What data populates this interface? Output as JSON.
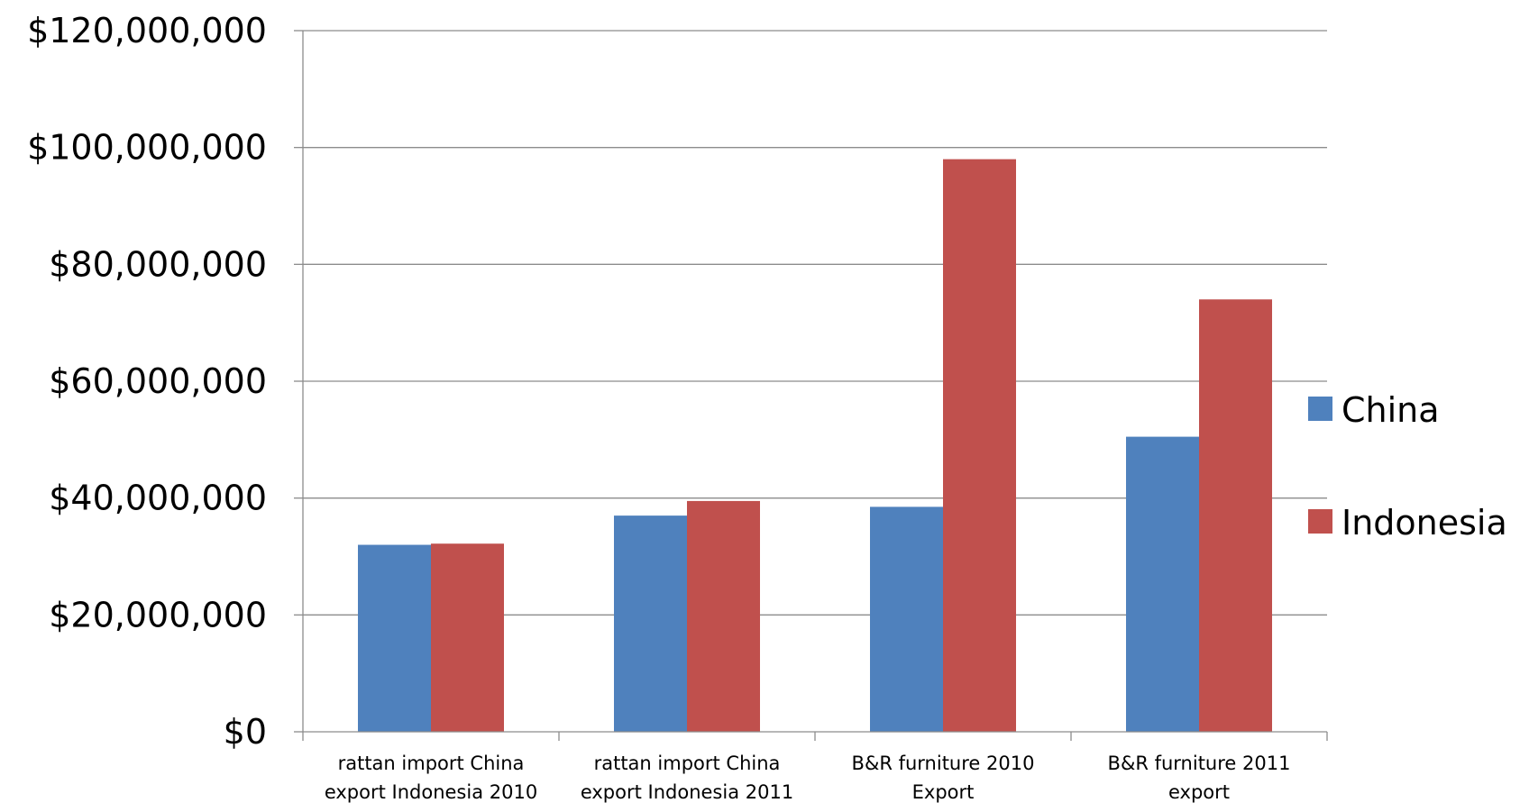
{
  "chart_data": {
    "type": "bar",
    "categories": [
      [
        "rattan import China",
        "export Indonesia 2010"
      ],
      [
        "rattan import China",
        "export Indonesia 2011"
      ],
      [
        "B&R furniture 2010",
        "Export"
      ],
      [
        "B&R furniture 2011",
        "export"
      ]
    ],
    "series": [
      {
        "name": "China",
        "color": "#4F81BD",
        "values": [
          32000000,
          37000000,
          38500000,
          50500000
        ]
      },
      {
        "name": "Indonesia",
        "color": "#C0504D",
        "values": [
          32200000,
          39500000,
          98000000,
          74000000
        ]
      }
    ],
    "y_ticks": [
      "$0",
      "$20,000,000",
      "$40,000,000",
      "$60,000,000",
      "$80,000,000",
      "$100,000,000",
      "$120,000,000"
    ],
    "y_tick_values": [
      0,
      20000000,
      40000000,
      60000000,
      80000000,
      100000000,
      120000000
    ],
    "ylim": [
      0,
      120000000
    ],
    "grid": true,
    "legend_position": "right",
    "title": "",
    "xlabel": "",
    "ylabel": ""
  }
}
